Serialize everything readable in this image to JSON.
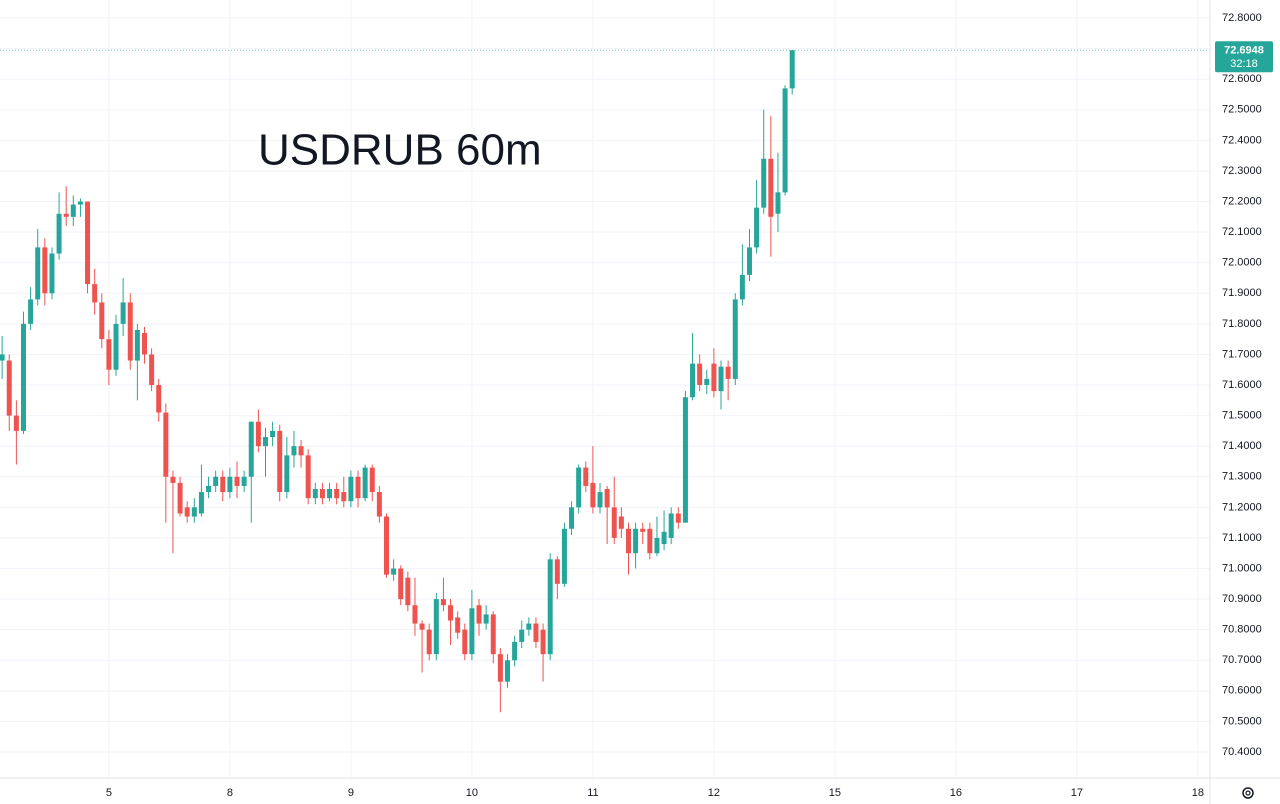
{
  "chart_data": {
    "type": "candlestick",
    "title": "USDRUB 60m",
    "up_color": "#26a69a",
    "down_color": "#ef5350",
    "grid": true,
    "x": [
      0,
      1,
      2,
      3,
      4,
      5,
      6,
      7,
      8,
      9,
      10,
      11,
      12,
      13,
      14,
      15,
      16,
      17,
      18,
      19,
      20,
      21,
      22,
      23,
      24,
      25,
      26,
      27,
      28,
      29,
      30,
      31,
      32,
      33,
      34,
      35,
      36,
      37,
      38,
      39,
      40,
      41,
      42,
      43,
      44,
      45,
      46,
      47,
      48,
      49,
      50,
      51,
      52,
      53,
      54,
      55,
      56,
      57,
      58,
      59,
      60,
      61,
      62,
      63,
      64,
      65,
      66,
      67,
      68,
      69,
      70,
      71,
      72,
      73,
      74,
      75,
      76,
      77,
      78,
      79,
      80,
      81,
      82,
      83,
      84,
      85,
      86,
      87,
      88,
      89,
      90,
      91,
      92,
      93,
      94,
      95,
      96,
      97,
      98,
      99,
      100,
      101,
      102,
      103,
      104,
      105,
      106,
      107,
      108,
      109,
      110,
      111
    ],
    "open": [
      71.68,
      71.68,
      71.5,
      71.45,
      71.8,
      71.88,
      72.05,
      71.9,
      72.03,
      72.16,
      72.15,
      72.19,
      72.2,
      71.93,
      71.87,
      71.75,
      71.65,
      71.8,
      71.87,
      71.68,
      71.77,
      71.7,
      71.6,
      71.51,
      71.3,
      71.28,
      71.2,
      71.17,
      71.18,
      71.25,
      71.27,
      71.3,
      71.25,
      71.3,
      71.27,
      71.3,
      71.48,
      71.4,
      71.43,
      71.45,
      71.25,
      71.37,
      71.4,
      71.37,
      71.23,
      71.26,
      71.23,
      71.26,
      71.25,
      71.22,
      71.3,
      71.23,
      71.33,
      71.25,
      71.17,
      70.98,
      71.0,
      70.97,
      70.88,
      70.82,
      70.8,
      70.72,
      70.9,
      70.88,
      70.84,
      70.8,
      70.72,
      70.88,
      70.82,
      70.85,
      70.72,
      70.63,
      70.7,
      70.76,
      70.8,
      70.82,
      70.8,
      70.72,
      71.03,
      70.95,
      71.13,
      71.2,
      71.33,
      71.28,
      71.2,
      71.26,
      71.2,
      71.17,
      71.13,
      71.05,
      71.13,
      71.13,
      71.05,
      71.08,
      71.1,
      71.18,
      71.15,
      71.56,
      71.67,
      71.6,
      71.67,
      71.58,
      71.66,
      71.62,
      71.88,
      71.96,
      72.05,
      72.18,
      72.34,
      72.16,
      72.23,
      72.57
    ],
    "high": [
      71.76,
      71.7,
      71.55,
      71.84,
      71.92,
      72.11,
      72.08,
      72.05,
      72.23,
      72.25,
      72.22,
      72.21,
      72.2,
      71.98,
      71.9,
      71.78,
      71.83,
      71.95,
      71.9,
      71.8,
      71.79,
      71.72,
      71.62,
      71.54,
      71.32,
      71.3,
      71.22,
      71.23,
      71.34,
      71.3,
      71.32,
      71.32,
      71.33,
      71.35,
      71.32,
      71.48,
      71.52,
      71.46,
      71.48,
      71.47,
      71.43,
      71.45,
      71.42,
      71.39,
      71.28,
      71.28,
      71.28,
      71.28,
      71.3,
      71.32,
      71.32,
      71.34,
      71.34,
      71.27,
      71.18,
      71.03,
      71.01,
      70.99,
      70.97,
      70.83,
      70.82,
      70.92,
      70.97,
      70.9,
      70.86,
      70.82,
      70.93,
      70.9,
      70.88,
      70.86,
      70.74,
      70.72,
      70.78,
      70.83,
      70.84,
      70.84,
      70.82,
      71.05,
      71.04,
      71.15,
      71.22,
      71.34,
      71.35,
      71.4,
      71.28,
      71.27,
      71.3,
      71.2,
      71.15,
      71.15,
      71.15,
      71.15,
      71.17,
      71.19,
      71.2,
      71.2,
      71.58,
      71.77,
      71.7,
      71.65,
      71.72,
      71.68,
      71.68,
      71.9,
      72.06,
      72.11,
      72.27,
      72.5,
      72.48,
      72.36,
      72.58,
      72.6948
    ],
    "low": [
      71.62,
      71.45,
      71.34,
      71.44,
      71.78,
      71.86,
      71.86,
      71.88,
      72.01,
      72.12,
      72.12,
      72.15,
      71.9,
      71.83,
      71.72,
      71.6,
      71.63,
      71.76,
      71.65,
      71.55,
      71.67,
      71.58,
      71.48,
      71.15,
      71.05,
      71.17,
      71.15,
      71.15,
      71.17,
      71.23,
      71.25,
      71.22,
      71.23,
      71.23,
      71.25,
      71.15,
      71.38,
      71.3,
      71.4,
      71.22,
      71.23,
      71.33,
      71.33,
      71.21,
      71.21,
      71.21,
      71.22,
      71.21,
      71.2,
      71.2,
      71.2,
      71.22,
      71.22,
      71.15,
      70.97,
      70.96,
      70.88,
      70.86,
      70.78,
      70.66,
      70.7,
      70.7,
      70.86,
      70.75,
      70.77,
      70.7,
      70.7,
      70.78,
      70.8,
      70.69,
      70.53,
      70.61,
      70.68,
      70.74,
      70.78,
      70.74,
      70.63,
      70.7,
      70.9,
      70.94,
      71.11,
      71.18,
      71.25,
      71.18,
      71.18,
      71.08,
      71.08,
      71.1,
      70.98,
      71.0,
      71.08,
      71.03,
      71.04,
      71.06,
      71.08,
      71.13,
      71.15,
      71.55,
      71.58,
      71.57,
      71.56,
      71.52,
      71.55,
      71.6,
      71.86,
      71.94,
      72.03,
      72.16,
      72.02,
      72.1,
      72.22,
      72.55
    ],
    "close": [
      71.7,
      71.5,
      71.45,
      71.8,
      71.88,
      72.05,
      71.9,
      72.03,
      72.16,
      72.15,
      72.19,
      72.2,
      71.93,
      71.87,
      71.75,
      71.65,
      71.8,
      71.87,
      71.68,
      71.78,
      71.7,
      71.6,
      71.51,
      71.3,
      71.28,
      71.18,
      71.17,
      71.2,
      71.25,
      71.27,
      71.3,
      71.25,
      71.3,
      71.27,
      71.3,
      71.48,
      71.4,
      71.43,
      71.45,
      71.25,
      71.37,
      71.4,
      71.37,
      71.23,
      71.26,
      71.23,
      71.26,
      71.23,
      71.22,
      71.3,
      71.23,
      71.33,
      71.25,
      71.17,
      70.98,
      71.0,
      70.9,
      70.88,
      70.82,
      70.8,
      70.72,
      70.9,
      70.88,
      70.83,
      70.79,
      70.72,
      70.87,
      70.82,
      70.85,
      70.72,
      70.63,
      70.7,
      70.76,
      70.8,
      70.82,
      70.76,
      70.72,
      71.03,
      70.95,
      71.13,
      71.2,
      71.33,
      71.27,
      71.2,
      71.25,
      71.2,
      71.1,
      71.13,
      71.05,
      71.13,
      71.12,
      71.05,
      71.1,
      71.12,
      71.18,
      71.15,
      71.56,
      71.67,
      71.6,
      71.62,
      71.58,
      71.66,
      71.62,
      71.88,
      71.96,
      72.05,
      72.18,
      72.34,
      72.15,
      72.23,
      72.57,
      72.6948
    ],
    "xlim": [
      -0.3,
      169.7
    ],
    "xticks": [
      {
        "value": 15,
        "label": "5"
      },
      {
        "value": 32,
        "label": "8"
      },
      {
        "value": 49,
        "label": "9"
      },
      {
        "value": 66,
        "label": "10"
      },
      {
        "value": 83,
        "label": "11"
      },
      {
        "value": 100,
        "label": "12"
      },
      {
        "value": 117,
        "label": "15"
      },
      {
        "value": 134,
        "label": "16"
      },
      {
        "value": 151,
        "label": "17"
      },
      {
        "value": 168,
        "label": "18"
      }
    ],
    "ylim": [
      70.315,
      72.859
    ],
    "yticks": [
      {
        "value": 72.8,
        "label": "72.8000"
      },
      {
        "value": 72.7,
        "label": "72.7000"
      },
      {
        "value": 72.6,
        "label": "72.6000"
      },
      {
        "value": 72.5,
        "label": "72.5000"
      },
      {
        "value": 72.4,
        "label": "72.4000"
      },
      {
        "value": 72.3,
        "label": "72.3000"
      },
      {
        "value": 72.2,
        "label": "72.2000"
      },
      {
        "value": 72.1,
        "label": "72.1000"
      },
      {
        "value": 72.0,
        "label": "72.0000"
      },
      {
        "value": 71.9,
        "label": "71.9000"
      },
      {
        "value": 71.8,
        "label": "71.8000"
      },
      {
        "value": 71.7,
        "label": "71.7000"
      },
      {
        "value": 71.6,
        "label": "71.6000"
      },
      {
        "value": 71.5,
        "label": "71.5000"
      },
      {
        "value": 71.4,
        "label": "71.4000"
      },
      {
        "value": 71.3,
        "label": "71.3000"
      },
      {
        "value": 71.2,
        "label": "71.2000"
      },
      {
        "value": 71.1,
        "label": "71.1000"
      },
      {
        "value": 71.0,
        "label": "71.0000"
      },
      {
        "value": 70.9,
        "label": "70.9000"
      },
      {
        "value": 70.8,
        "label": "70.8000"
      },
      {
        "value": 70.7,
        "label": "70.7000"
      },
      {
        "value": 70.6,
        "label": "70.6000"
      },
      {
        "value": 70.5,
        "label": "70.5000"
      },
      {
        "value": 70.4,
        "label": "70.4000"
      }
    ],
    "last_price": 72.6948,
    "countdown": "32:18"
  }
}
